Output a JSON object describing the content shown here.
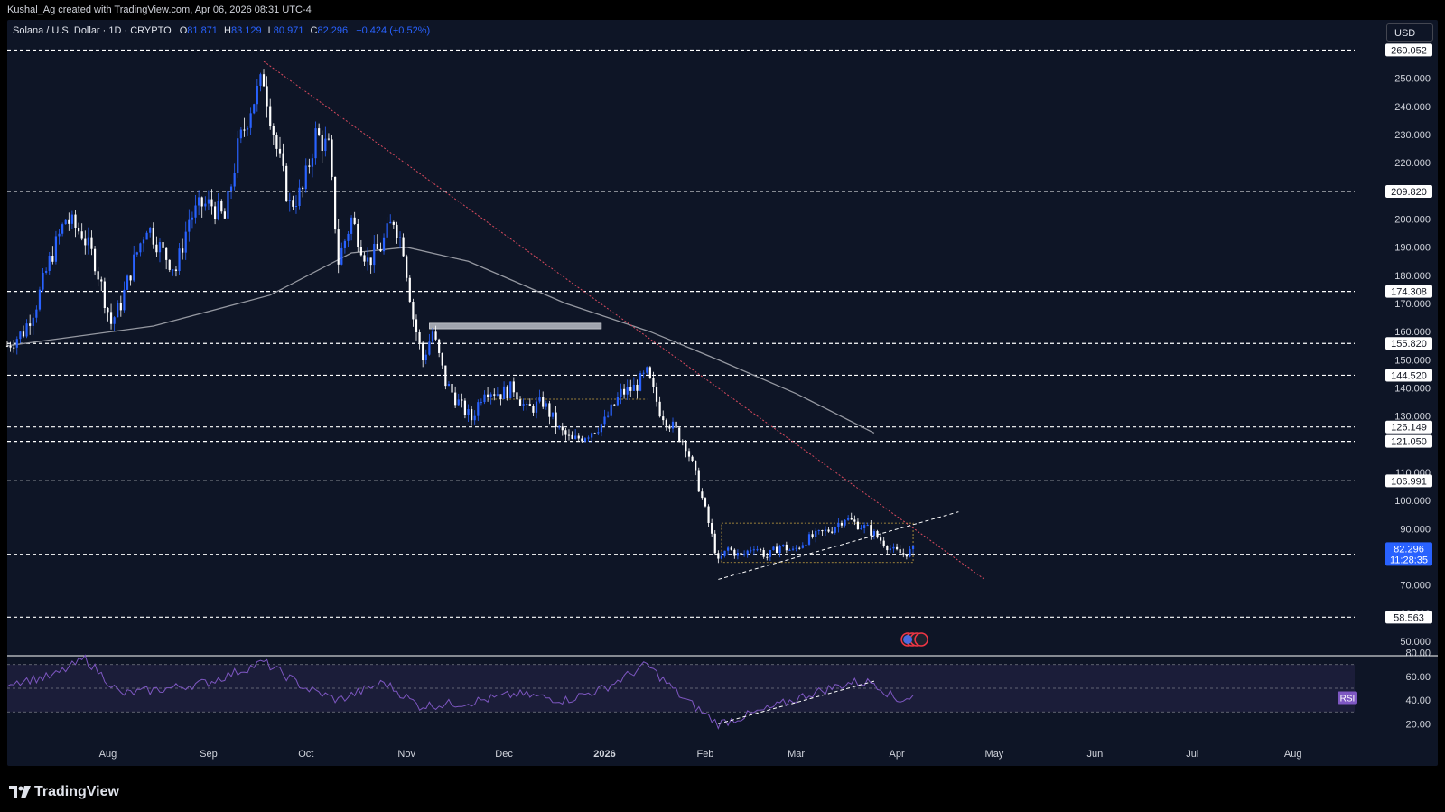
{
  "header": {
    "attribution": "Kushal_Ag created with TradingView.com, Apr 06, 2026 08:31 UTC-4"
  },
  "legend": {
    "symbol": "Solana / U.S. Dollar · 1D · CRYPTO",
    "o_label": "O",
    "o_value": "81.871",
    "h_label": "H",
    "h_value": "83.129",
    "l_label": "L",
    "l_value": "80.971",
    "c_label": "C",
    "c_value": "82.296",
    "change": "+0.424 (+0.52%)"
  },
  "currency": "USD",
  "footer": {
    "brand": "TradingView",
    "icon": "tradingview-logo-icon"
  },
  "colors": {
    "background": "#0e1526",
    "candle_up": "#2962ff",
    "candle_down": "#ffffff",
    "trendline": "#d84a5e",
    "ma_line": "#9598a1",
    "rsi_line": "#7e57c2",
    "box": "#c8a440",
    "price_badge": "#2962ff"
  },
  "chart_data": [
    {
      "type": "candlestick",
      "symbol": "SOL/USD",
      "timeframe": "1D",
      "y_axis": {
        "min": 50,
        "max": 265,
        "ticks": [
          "250.000",
          "240.000",
          "230.000",
          "220.000",
          "200.000",
          "190.000",
          "180.000",
          "170.000",
          "160.000",
          "150.000",
          "140.000",
          "130.000",
          "110.000",
          "100.000",
          "90.000",
          "70.000",
          "60.000",
          "50.000"
        ]
      },
      "x_axis": {
        "start": "2025-07-01",
        "end": "2026-08-20",
        "labels": [
          {
            "text": "Aug",
            "date": "2025-08-01"
          },
          {
            "text": "Sep",
            "date": "2025-09-01"
          },
          {
            "text": "Oct",
            "date": "2025-10-01"
          },
          {
            "text": "Nov",
            "date": "2025-11-01"
          },
          {
            "text": "Dec",
            "date": "2025-12-01"
          },
          {
            "text": "2026",
            "date": "2026-01-01"
          },
          {
            "text": "Feb",
            "date": "2026-02-01"
          },
          {
            "text": "Mar",
            "date": "2026-03-01"
          },
          {
            "text": "Apr",
            "date": "2026-04-01"
          },
          {
            "text": "May",
            "date": "2026-05-01"
          },
          {
            "text": "Jun",
            "date": "2026-06-01"
          },
          {
            "text": "Jul",
            "date": "2026-07-01"
          },
          {
            "text": "Aug",
            "date": "2026-08-01"
          }
        ]
      },
      "price_path": [
        [
          "2025-07-01",
          155
        ],
        [
          "2025-07-06",
          160
        ],
        [
          "2025-07-10",
          170
        ],
        [
          "2025-07-14",
          185
        ],
        [
          "2025-07-19",
          200
        ],
        [
          "2025-07-24",
          195
        ],
        [
          "2025-07-28",
          185
        ],
        [
          "2025-08-02",
          163
        ],
        [
          "2025-08-05",
          170
        ],
        [
          "2025-08-09",
          185
        ],
        [
          "2025-08-13",
          198
        ],
        [
          "2025-08-18",
          188
        ],
        [
          "2025-08-22",
          182
        ],
        [
          "2025-08-26",
          200
        ],
        [
          "2025-08-30",
          205
        ],
        [
          "2025-09-02",
          205
        ],
        [
          "2025-09-06",
          200
        ],
        [
          "2025-09-10",
          225
        ],
        [
          "2025-09-14",
          240
        ],
        [
          "2025-09-18",
          250
        ],
        [
          "2025-09-22",
          225
        ],
        [
          "2025-09-26",
          205
        ],
        [
          "2025-09-30",
          210
        ],
        [
          "2025-10-04",
          230
        ],
        [
          "2025-10-08",
          225
        ],
        [
          "2025-10-11",
          185
        ],
        [
          "2025-10-15",
          200
        ],
        [
          "2025-10-20",
          185
        ],
        [
          "2025-10-24",
          190
        ],
        [
          "2025-10-28",
          200
        ],
        [
          "2025-10-31",
          190
        ],
        [
          "2025-11-03",
          165
        ],
        [
          "2025-11-06",
          150
        ],
        [
          "2025-11-09",
          160
        ],
        [
          "2025-11-13",
          142
        ],
        [
          "2025-11-18",
          133
        ],
        [
          "2025-11-21",
          129
        ],
        [
          "2025-11-25",
          140
        ],
        [
          "2025-11-30",
          138
        ],
        [
          "2025-12-04",
          140
        ],
        [
          "2025-12-08",
          132
        ],
        [
          "2025-12-13",
          135
        ],
        [
          "2025-12-18",
          125
        ],
        [
          "2025-12-22",
          121
        ],
        [
          "2025-12-27",
          124
        ],
        [
          "2026-01-01",
          128
        ],
        [
          "2026-01-06",
          138
        ],
        [
          "2026-01-10",
          140
        ],
        [
          "2026-01-14",
          145
        ],
        [
          "2026-01-18",
          132
        ],
        [
          "2026-01-22",
          126
        ],
        [
          "2026-01-26",
          120
        ],
        [
          "2026-01-30",
          105
        ],
        [
          "2026-02-02",
          92
        ],
        [
          "2026-02-05",
          78
        ],
        [
          "2026-02-08",
          83
        ],
        [
          "2026-02-12",
          80
        ],
        [
          "2026-02-16",
          84
        ],
        [
          "2026-02-20",
          80
        ],
        [
          "2026-02-24",
          84
        ],
        [
          "2026-02-28",
          82
        ],
        [
          "2026-03-04",
          86
        ],
        [
          "2026-03-08",
          88
        ],
        [
          "2026-03-12",
          90
        ],
        [
          "2026-03-16",
          94
        ],
        [
          "2026-03-19",
          92
        ],
        [
          "2026-03-23",
          90
        ],
        [
          "2026-03-27",
          86
        ],
        [
          "2026-03-31",
          82
        ],
        [
          "2026-04-03",
          81
        ],
        [
          "2026-04-06",
          82.3
        ]
      ],
      "moving_average": [
        [
          "2025-07-01",
          155
        ],
        [
          "2025-08-15",
          162
        ],
        [
          "2025-09-20",
          173
        ],
        [
          "2025-10-15",
          188
        ],
        [
          "2025-11-01",
          190
        ],
        [
          "2025-11-20",
          185
        ],
        [
          "2025-12-20",
          170
        ],
        [
          "2026-01-15",
          160
        ],
        [
          "2026-02-05",
          150
        ],
        [
          "2026-03-01",
          138
        ],
        [
          "2026-03-25",
          124
        ]
      ],
      "horizontal_levels": [
        "260.052",
        "209.820",
        "174.308",
        "155.820",
        "144.520",
        "126.149",
        "121.050",
        "106.991",
        "80.897",
        "58.563"
      ],
      "current_price": {
        "label": "82.296",
        "value": 82.296,
        "countdown": "11:28:35"
      },
      "trendline": {
        "from": [
          "2025-09-18",
          256
        ],
        "to": [
          "2026-04-28",
          72
        ]
      },
      "triangle_support": {
        "from": [
          "2026-02-05",
          72
        ],
        "to": [
          "2026-04-20",
          96
        ]
      },
      "range_box": {
        "from": "2026-02-06",
        "to": "2026-04-06",
        "low": 78,
        "high": 92
      },
      "upper_range_line": {
        "from": "2025-11-26",
        "to": "2026-01-14",
        "value": 136
      },
      "supply_zone": {
        "from": "2025-11-08",
        "to": "2025-12-31",
        "low": 161,
        "high": 163
      }
    },
    {
      "type": "line",
      "name": "RSI",
      "label": "RSI",
      "ticks": [
        "80.00",
        "60.00",
        "40.00",
        "20.00"
      ],
      "ylim": [
        15,
        85
      ],
      "band": [
        30,
        70
      ],
      "x": [
        "2025-07-01",
        "2025-07-15",
        "2025-07-25",
        "2025-08-05",
        "2025-08-20",
        "2025-09-01",
        "2025-09-18",
        "2025-10-01",
        "2025-10-11",
        "2025-10-25",
        "2025-11-05",
        "2025-11-20",
        "2025-12-05",
        "2025-12-20",
        "2026-01-01",
        "2026-01-14",
        "2026-01-25",
        "2026-02-05",
        "2026-02-20",
        "2026-03-05",
        "2026-03-18",
        "2026-03-25",
        "2026-04-01",
        "2026-04-06"
      ],
      "y": [
        55,
        60,
        75,
        45,
        50,
        55,
        72,
        50,
        40,
        55,
        35,
        38,
        45,
        40,
        50,
        70,
        42,
        20,
        32,
        45,
        55,
        55,
        40,
        43
      ]
    }
  ]
}
